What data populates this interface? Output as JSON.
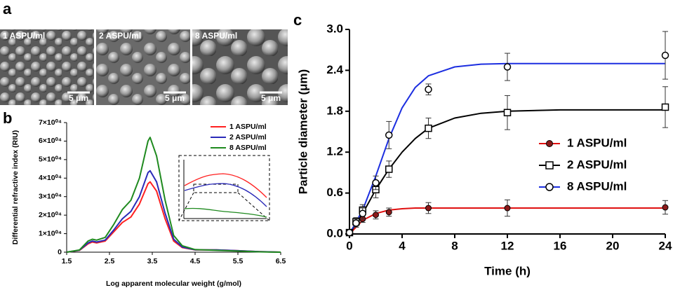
{
  "panel_a": {
    "label": "a",
    "images": [
      {
        "caption": "1 ASPU/ml",
        "scale_bar": "5 μm"
      },
      {
        "caption": "2 ASPU/ml",
        "scale_bar": "5 μm"
      },
      {
        "caption": "8 ASPU/ml",
        "scale_bar": "5 μm"
      }
    ]
  },
  "chart_data": [
    {
      "type": "line",
      "panel_label": "b",
      "x_label": "Log apparent molecular weight (g/mol)",
      "y_label": "Differential refractive index (RIU)",
      "x": [
        1.5,
        1.8,
        2.0,
        2.1,
        2.2,
        2.4,
        2.6,
        2.8,
        3.0,
        3.2,
        3.4,
        3.45,
        3.6,
        3.8,
        4.0,
        4.2,
        4.5,
        5.0,
        5.5,
        6.0,
        6.5
      ],
      "series": [
        {
          "name": "1 ASPU/ml",
          "color": "#ff2020",
          "values": [
            0,
            1000,
            4500,
            5500,
            5000,
            6000,
            11000,
            16000,
            19000,
            26000,
            37000,
            38000,
            33000,
            18000,
            6000,
            2500,
            1200,
            1200,
            800,
            300,
            0
          ]
        },
        {
          "name": "2 ASPU/ml",
          "color": "#2a2ab8",
          "values": [
            0,
            1100,
            5000,
            6000,
            5500,
            6500,
            12000,
            18000,
            22000,
            30000,
            43000,
            44000,
            38000,
            21000,
            7000,
            2800,
            1300,
            1200,
            800,
            300,
            0
          ]
        },
        {
          "name": "8 ASPU/ml",
          "color": "#1f8a1f",
          "values": [
            0,
            1200,
            6000,
            7000,
            6500,
            8000,
            15000,
            23000,
            28000,
            40000,
            60000,
            62000,
            52000,
            28000,
            9000,
            3500,
            1400,
            1000,
            600,
            200,
            0
          ]
        }
      ],
      "xlim": [
        1.5,
        6.5
      ],
      "xticks": [
        1.5,
        2.5,
        3.5,
        4.5,
        5.5,
        6.5
      ],
      "ylim": [
        0,
        70000
      ],
      "yticks": [
        0,
        {
          "value": 10000,
          "label": "1×10⁰⁴"
        },
        {
          "value": 20000,
          "label": "2×10⁰⁴"
        },
        {
          "value": 30000,
          "label": "3×10⁰⁴"
        },
        {
          "value": 40000,
          "label": "4×10⁰⁴"
        },
        {
          "value": 50000,
          "label": "5×10⁰⁴"
        },
        {
          "value": 60000,
          "label": "6×10⁰⁴"
        },
        {
          "value": 70000,
          "label": "7×10⁰⁴"
        }
      ],
      "legend": "upper right"
    },
    {
      "type": "scatter",
      "panel_label": "c",
      "x_label": "Time (h)",
      "y_label": "Particle diameter (μm)",
      "x": [
        0,
        0.5,
        1,
        2,
        3,
        6,
        12,
        24
      ],
      "fit_x": [
        0,
        1,
        2,
        3,
        4,
        5,
        6,
        8,
        10,
        12,
        16,
        20,
        24
      ],
      "series": [
        {
          "name": "1 ASPU/ml",
          "color": "#e01010",
          "marker": "filled-circle",
          "values": [
            0.02,
            0.15,
            0.22,
            0.28,
            0.32,
            0.38,
            0.38,
            0.39
          ],
          "errors": [
            0.02,
            0.05,
            0.05,
            0.06,
            0.06,
            0.08,
            0.12,
            0.1
          ],
          "fit_values": [
            0,
            0.2,
            0.3,
            0.35,
            0.37,
            0.38,
            0.38,
            0.38,
            0.38,
            0.38,
            0.38,
            0.38,
            0.38
          ]
        },
        {
          "name": "2 ASPU/ml",
          "color": "#000000",
          "marker": "open-square",
          "values": [
            0.02,
            0.18,
            0.35,
            0.65,
            0.95,
            1.55,
            1.78,
            1.86
          ],
          "errors": [
            0.02,
            0.06,
            0.08,
            0.12,
            0.12,
            0.15,
            0.25,
            0.3
          ],
          "fit_values": [
            0,
            0.3,
            0.65,
            0.95,
            1.2,
            1.4,
            1.55,
            1.7,
            1.77,
            1.8,
            1.82,
            1.82,
            1.82
          ]
        },
        {
          "name": "8 ASPU/ml",
          "color": "#1c2ee0",
          "marker": "open-circle",
          "values": [
            0.02,
            0.16,
            0.3,
            0.75,
            1.45,
            2.12,
            2.45,
            2.62
          ],
          "errors": [
            0.02,
            0.06,
            0.08,
            0.1,
            0.2,
            0.08,
            0.2,
            0.35
          ],
          "fit_values": [
            0,
            0.35,
            0.85,
            1.4,
            1.85,
            2.15,
            2.32,
            2.45,
            2.49,
            2.5,
            2.5,
            2.5,
            2.5
          ]
        }
      ],
      "xlim": [
        0,
        24
      ],
      "xticks": [
        0,
        4,
        8,
        12,
        16,
        20,
        24
      ],
      "ylim": [
        0,
        3
      ],
      "yticks": [
        {
          "value": 0,
          "label": "0.0"
        },
        0.6,
        1.2,
        1.8,
        2.4,
        {
          "value": 3,
          "label": "3.0"
        }
      ],
      "legend": "center right"
    }
  ]
}
